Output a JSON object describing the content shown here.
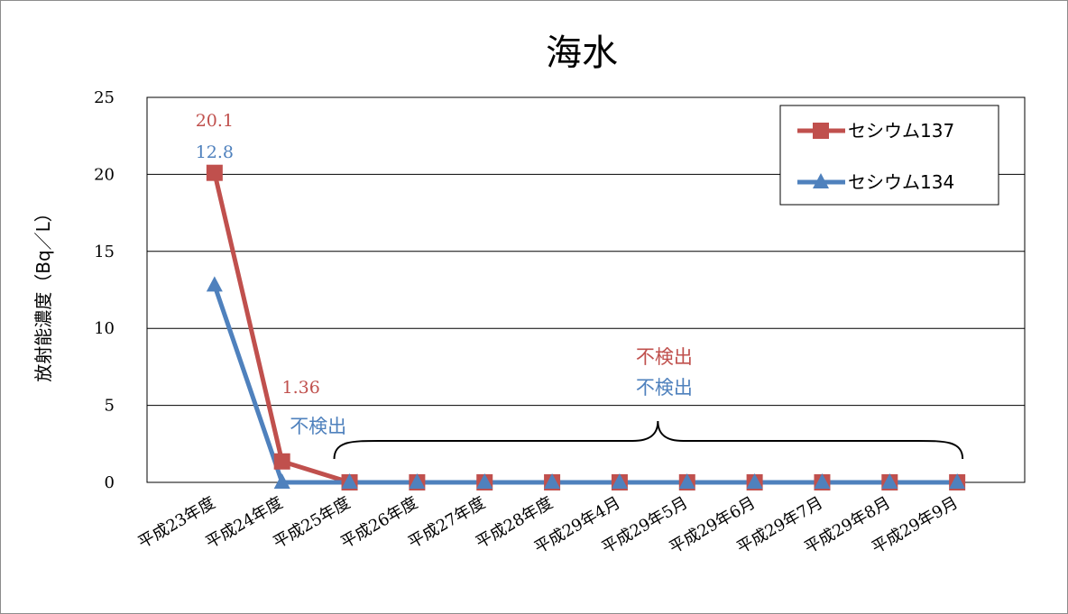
{
  "chart_data": {
    "type": "line",
    "title": "海水",
    "ylabel": "放射能濃度（Bq／L）",
    "xlabel": "",
    "ylim": [
      0,
      25
    ],
    "yticks": [
      0,
      5,
      10,
      15,
      20,
      25
    ],
    "grid": "horizontal",
    "legend_position": "top-right",
    "categories": [
      "平成23年度",
      "平成24年度",
      "平成25年度",
      "平成26年度",
      "平成27年度",
      "平成28年度",
      "平成29年4月",
      "平成29年5月",
      "平成29年6月",
      "平成29年7月",
      "平成29年8月",
      "平成29年9月"
    ],
    "series": [
      {
        "name": "セシウム137",
        "color": "#C0504D",
        "marker": "square",
        "values": [
          20.1,
          1.36,
          0,
          0,
          0,
          0,
          0,
          0,
          0,
          0,
          0,
          0
        ],
        "data_labels": [
          "20.1",
          "1.36"
        ]
      },
      {
        "name": "セシウム134",
        "color": "#4F81BD",
        "marker": "triangle",
        "values": [
          12.8,
          0,
          0,
          0,
          0,
          0,
          0,
          0,
          0,
          0,
          0,
          0
        ],
        "data_labels": [
          "12.8",
          "不検出"
        ]
      }
    ],
    "annotations": {
      "brace_label_137": "不検出",
      "brace_label_134": "不検出"
    }
  }
}
